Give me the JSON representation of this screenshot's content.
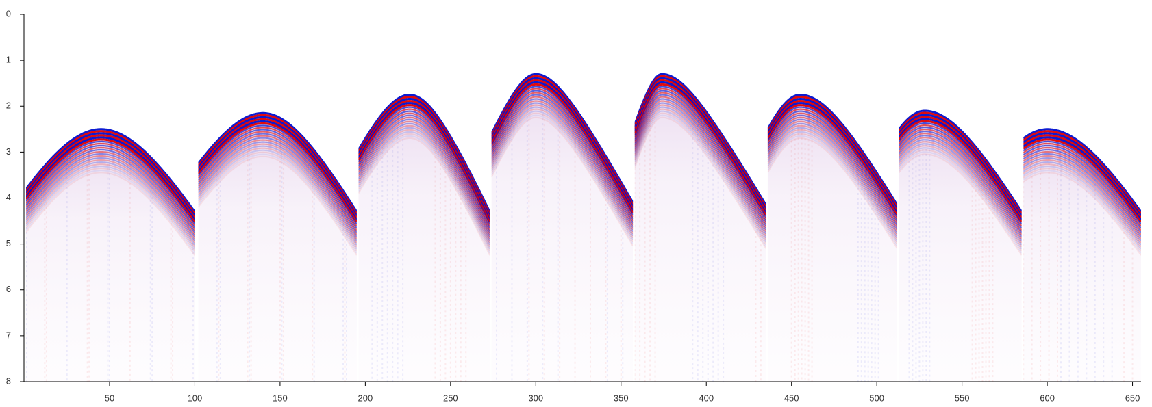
{
  "chart_data": {
    "type": "seismic",
    "xlim": [
      1,
      655
    ],
    "ylim": [
      0,
      8
    ],
    "y_inverted": true,
    "xticks": [
      50,
      100,
      150,
      200,
      250,
      300,
      350,
      400,
      450,
      500,
      550,
      600,
      650
    ],
    "yticks": [
      0,
      1,
      2,
      3,
      4,
      5,
      6,
      7,
      8
    ],
    "positive_color": "#e00000",
    "negative_color": "#0010d0",
    "gathers": [
      {
        "x": [
          1,
          100
        ],
        "apex": [
          45,
          2.5
        ],
        "edge_t": [
          3.8,
          4.3
        ]
      },
      {
        "x": [
          102,
          195
        ],
        "apex": [
          140,
          2.15
        ],
        "edge_t": [
          3.25,
          4.3
        ]
      },
      {
        "x": [
          196,
          273
        ],
        "apex": [
          226,
          1.75
        ],
        "edge_t": [
          2.95,
          4.3
        ]
      },
      {
        "x": [
          274,
          357
        ],
        "apex": [
          300,
          1.3
        ],
        "edge_t": [
          2.6,
          4.1
        ]
      },
      {
        "x": [
          358,
          435
        ],
        "apex": [
          374,
          1.3
        ],
        "edge_t": [
          2.4,
          4.15
        ]
      },
      {
        "x": [
          436,
          512
        ],
        "apex": [
          455,
          1.75
        ],
        "edge_t": [
          2.5,
          4.15
        ]
      },
      {
        "x": [
          513,
          585
        ],
        "apex": [
          528,
          2.1
        ],
        "edge_t": [
          2.5,
          4.3
        ]
      },
      {
        "x": [
          586,
          655
        ],
        "apex": [
          600,
          2.5
        ],
        "edge_t": [
          2.7,
          4.3
        ]
      }
    ]
  }
}
